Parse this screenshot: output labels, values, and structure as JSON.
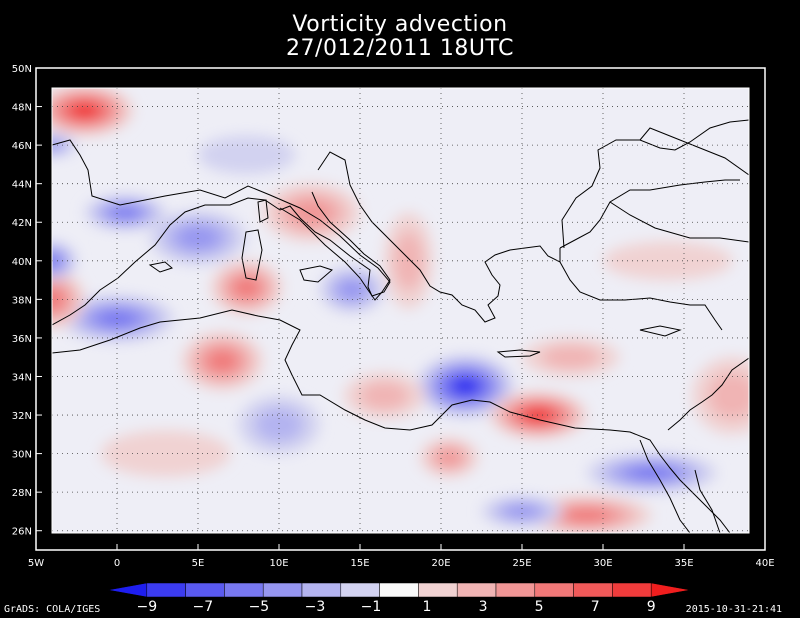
{
  "title": {
    "line1": "Vorticity advection",
    "line2": "27/012/2011 18UTC"
  },
  "map": {
    "lon_range": [
      -5,
      40
    ],
    "lat_range": [
      25,
      50
    ],
    "lat_ticks": [
      {
        "value": 50,
        "label": "50N"
      },
      {
        "value": 48,
        "label": "48N"
      },
      {
        "value": 46,
        "label": "46N"
      },
      {
        "value": 44,
        "label": "44N"
      },
      {
        "value": 42,
        "label": "42N"
      },
      {
        "value": 40,
        "label": "40N"
      },
      {
        "value": 38,
        "label": "38N"
      },
      {
        "value": 36,
        "label": "36N"
      },
      {
        "value": 34,
        "label": "34N"
      },
      {
        "value": 32,
        "label": "32N"
      },
      {
        "value": 30,
        "label": "30N"
      },
      {
        "value": 28,
        "label": "28N"
      },
      {
        "value": 26,
        "label": "26N"
      }
    ],
    "lon_ticks": [
      {
        "value": -5,
        "label": "5W"
      },
      {
        "value": 0,
        "label": "0"
      },
      {
        "value": 5,
        "label": "5E"
      },
      {
        "value": 10,
        "label": "10E"
      },
      {
        "value": 15,
        "label": "15E"
      },
      {
        "value": 20,
        "label": "20E"
      },
      {
        "value": 25,
        "label": "25E"
      },
      {
        "value": 30,
        "label": "30E"
      },
      {
        "value": 35,
        "label": "35E"
      },
      {
        "value": 40,
        "label": "40E"
      }
    ],
    "grid": true
  },
  "colorbar": {
    "colors": [
      "#1e1ef0",
      "#3c3cf0",
      "#5a5af0",
      "#7878f0",
      "#9696f0",
      "#b4b4f0",
      "#d2d2f0",
      "#fafafa",
      "#f0d2d2",
      "#f0b4b4",
      "#f09696",
      "#f07878",
      "#f05a5a",
      "#f03c3c",
      "#f01e1e"
    ],
    "labels": [
      {
        "value": -9,
        "label": "−9"
      },
      {
        "value": -7,
        "label": "−7"
      },
      {
        "value": -5,
        "label": "−5"
      },
      {
        "value": -3,
        "label": "−3"
      },
      {
        "value": -1,
        "label": "−1"
      },
      {
        "value": 1,
        "label": "1"
      },
      {
        "value": 3,
        "label": "3"
      },
      {
        "value": 5,
        "label": "5"
      },
      {
        "value": 7,
        "label": "7"
      },
      {
        "value": 9,
        "label": "9"
      }
    ]
  },
  "features": [
    {
      "lon": 21.5,
      "lat": 33.5,
      "rx": 3,
      "ry": 1.6,
      "sign": "negative",
      "level": 9
    },
    {
      "lon": 26.0,
      "lat": 32.0,
      "rx": 3,
      "ry": 1.2,
      "sign": "positive",
      "level": 9
    },
    {
      "lon": -2.0,
      "lat": 47.8,
      "rx": 3,
      "ry": 1.3,
      "sign": "positive",
      "level": 9
    },
    {
      "lon": 8.0,
      "lat": 38.6,
      "rx": 2.2,
      "ry": 1.4,
      "sign": "positive",
      "level": 7
    },
    {
      "lon": 6.5,
      "lat": 34.8,
      "rx": 2.5,
      "ry": 1.5,
      "sign": "positive",
      "level": 7
    },
    {
      "lon": 0.0,
      "lat": 37.0,
      "rx": 3.5,
      "ry": 1.2,
      "sign": "negative",
      "level": 7
    },
    {
      "lon": 0.5,
      "lat": 42.5,
      "rx": 2.5,
      "ry": 0.9,
      "sign": "negative",
      "level": 7
    },
    {
      "lon": 5.0,
      "lat": 41.2,
      "rx": 3,
      "ry": 1.4,
      "sign": "negative",
      "level": 5
    },
    {
      "lon": -4.0,
      "lat": 38.0,
      "rx": 2,
      "ry": 1.5,
      "sign": "positive",
      "level": 7
    },
    {
      "lon": 12.0,
      "lat": 42.5,
      "rx": 3,
      "ry": 1.5,
      "sign": "positive",
      "level": 5
    },
    {
      "lon": 14.5,
      "lat": 38.5,
      "rx": 2,
      "ry": 1.2,
      "sign": "negative",
      "level": 5
    },
    {
      "lon": 33.0,
      "lat": 29.0,
      "rx": 4,
      "ry": 1.0,
      "sign": "negative",
      "level": 7
    },
    {
      "lon": 29.0,
      "lat": 26.8,
      "rx": 4,
      "ry": 1.0,
      "sign": "positive",
      "level": 7
    },
    {
      "lon": 20.5,
      "lat": 29.8,
      "rx": 1.8,
      "ry": 1.0,
      "sign": "positive",
      "level": 5
    },
    {
      "lon": 25.0,
      "lat": 27.0,
      "rx": 2.5,
      "ry": 0.8,
      "sign": "negative",
      "level": 5
    },
    {
      "lon": -4.0,
      "lat": 40.0,
      "rx": 1.5,
      "ry": 1.0,
      "sign": "negative",
      "level": 7
    },
    {
      "lon": -4.0,
      "lat": 46.0,
      "rx": 1.5,
      "ry": 0.6,
      "sign": "negative",
      "level": 5
    },
    {
      "lon": 18.0,
      "lat": 40.0,
      "rx": 1.5,
      "ry": 2.5,
      "sign": "positive",
      "level": 3
    },
    {
      "lon": 10.0,
      "lat": 31.5,
      "rx": 2.5,
      "ry": 1.5,
      "sign": "negative",
      "level": 3
    },
    {
      "lon": 16.5,
      "lat": 33.0,
      "rx": 2.5,
      "ry": 1.2,
      "sign": "positive",
      "level": 3
    },
    {
      "lon": 38.0,
      "lat": 33.0,
      "rx": 2.5,
      "ry": 2.0,
      "sign": "positive",
      "level": 3
    },
    {
      "lon": 28.0,
      "lat": 35.0,
      "rx": 3,
      "ry": 1.0,
      "sign": "positive",
      "level": 3
    },
    {
      "lon": 8.0,
      "lat": 45.5,
      "rx": 3,
      "ry": 1.0,
      "sign": "negative",
      "level": 1
    },
    {
      "lon": 3.0,
      "lat": 30.0,
      "rx": 4,
      "ry": 1.2,
      "sign": "positive",
      "level": 1
    },
    {
      "lon": 34.0,
      "lat": 40.0,
      "rx": 4,
      "ry": 1.0,
      "sign": "positive",
      "level": 1
    }
  ],
  "footer": {
    "left": "GrADS: COLA/IGES",
    "right": "2015-10-31-21:41"
  }
}
